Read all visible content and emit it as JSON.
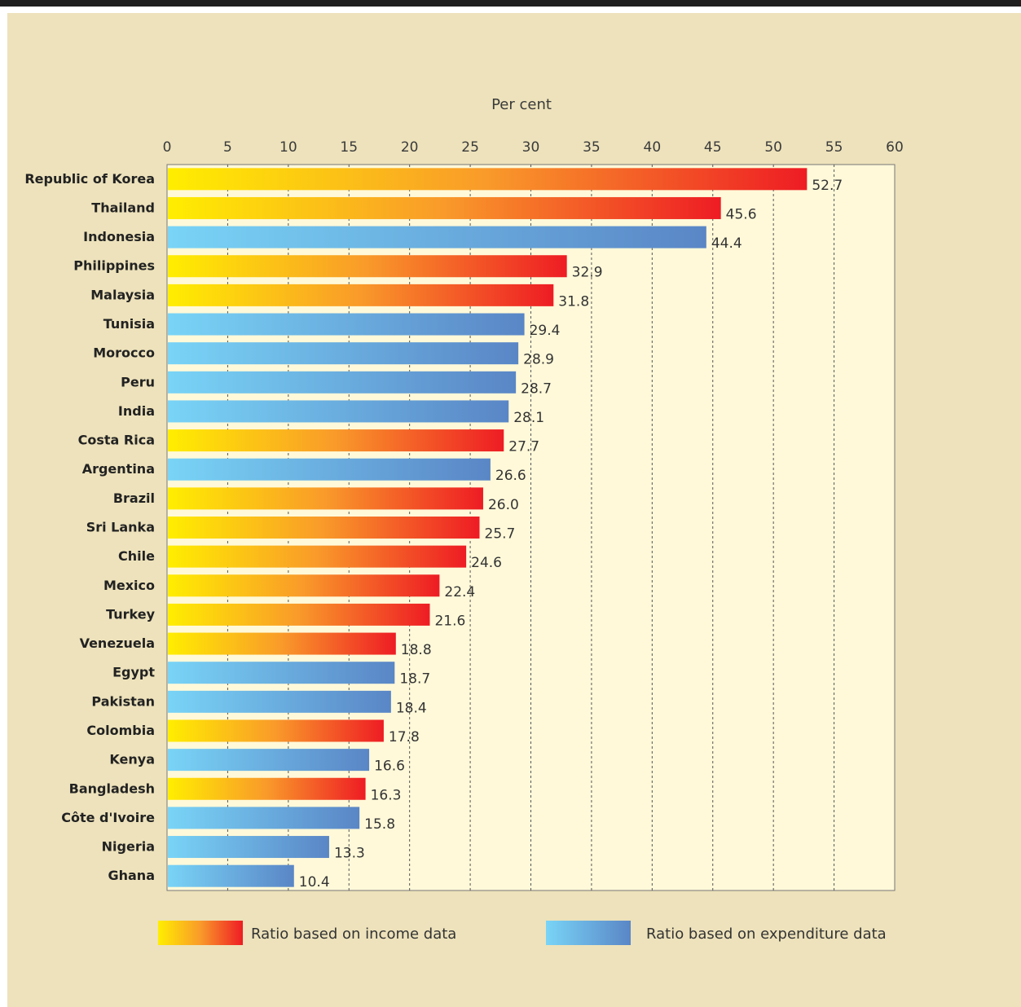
{
  "chart_data": {
    "type": "bar",
    "orientation": "horizontal",
    "title": "",
    "xlabel": "Per cent",
    "xlim": [
      0,
      60
    ],
    "x_ticks": [
      0,
      5,
      10,
      15,
      20,
      25,
      30,
      35,
      40,
      45,
      50,
      55,
      60
    ],
    "grid": "vertical dashed",
    "legend_position": "bottom",
    "series": [
      {
        "name": "Ratio based on income data",
        "color_start": "#ffee00",
        "color_end": "#ee1c24"
      },
      {
        "name": "Ratio based on expenditure data",
        "color_start": "#79d4f7",
        "color_end": "#5a86c6"
      }
    ],
    "categories": [
      "Republic of Korea",
      "Thailand",
      "Indonesia",
      "Philippines",
      "Malaysia",
      "Tunisia",
      "Morocco",
      "Peru",
      "India",
      "Costa Rica",
      "Argentina",
      "Brazil",
      "Sri Lanka",
      "Chile",
      "Mexico",
      "Turkey",
      "Venezuela",
      "Egypt",
      "Pakistan",
      "Colombia",
      "Kenya",
      "Bangladesh",
      "Côte d'Ivoire",
      "Nigeria",
      "Ghana"
    ],
    "values": [
      52.7,
      45.6,
      44.4,
      32.9,
      31.8,
      29.4,
      28.9,
      28.7,
      28.1,
      27.7,
      26.6,
      26.0,
      25.7,
      24.6,
      22.4,
      21.6,
      18.8,
      18.7,
      18.4,
      17.8,
      16.6,
      16.3,
      15.8,
      13.3,
      10.4
    ],
    "value_labels": [
      "52.7",
      "45.6",
      "44.4",
      "32.9",
      "31.8",
      "29.4",
      "28.9",
      "28.7",
      "28.1",
      "27.7",
      "26.6",
      "26.0",
      "25.7",
      "24.6",
      "22.4",
      "21.6",
      "18.8",
      "18.7",
      "18.4",
      "17.8",
      "16.6",
      "16.3",
      "15.8",
      "13.3",
      "10.4"
    ],
    "basis": [
      "income",
      "income",
      "expenditure",
      "income",
      "income",
      "expenditure",
      "expenditure",
      "expenditure",
      "expenditure",
      "income",
      "expenditure",
      "income",
      "income",
      "income",
      "income",
      "income",
      "income",
      "expenditure",
      "expenditure",
      "income",
      "expenditure",
      "income",
      "expenditure",
      "expenditure",
      "expenditure"
    ],
    "colors": {
      "plot_background": "#fff9d9",
      "panel_background": "#ede2bb"
    }
  }
}
